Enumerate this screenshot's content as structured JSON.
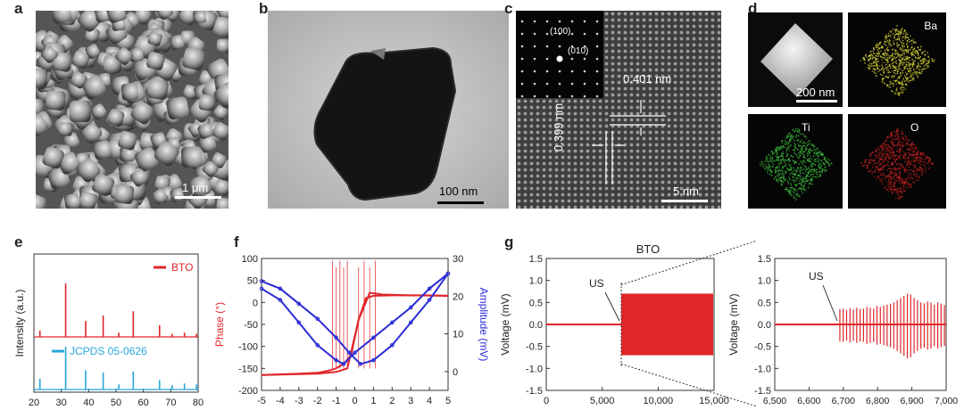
{
  "panels": {
    "a": {
      "label": "a",
      "scale": "1 μm"
    },
    "b": {
      "label": "b",
      "scale": "100 nm"
    },
    "c": {
      "label": "c",
      "scale": "5 nm",
      "miller1": "(100)",
      "miller2": "(010)",
      "dim1": "0.401 nm",
      "dim2": "0.399 nm"
    },
    "d": {
      "label": "d",
      "scale": "200 nm",
      "maps": [
        "Ba",
        "Ti",
        "O"
      ],
      "colors": {
        "Ba": "#d8d43a",
        "Ti": "#3cb83c",
        "O": "#c02020"
      }
    }
  },
  "chart_data": [
    {
      "panel": "e",
      "type": "line",
      "xlabel": "",
      "ylabel": "Intensity (a.u.)",
      "xlim": [
        20,
        80
      ],
      "xticks": [
        20,
        30,
        40,
        50,
        60,
        70,
        80
      ],
      "series": [
        {
          "name": "BTO",
          "color": "#e0262a",
          "peaks": [
            [
              22.2,
              12
            ],
            [
              31.6,
              100
            ],
            [
              38.9,
              30
            ],
            [
              45.3,
              40
            ],
            [
              51.0,
              8
            ],
            [
              56.3,
              48
            ],
            [
              65.9,
              22
            ],
            [
              70.5,
              6
            ],
            [
              75.0,
              8
            ],
            [
              79.4,
              6
            ]
          ]
        },
        {
          "name": "JCPDS 05-0626",
          "color": "#29a6dc",
          "peaks": [
            [
              22.2,
              25
            ],
            [
              31.6,
              100
            ],
            [
              38.9,
              45
            ],
            [
              45.3,
              40
            ],
            [
              51.0,
              12
            ],
            [
              56.3,
              42
            ],
            [
              65.9,
              22
            ],
            [
              70.5,
              10
            ],
            [
              75.0,
              14
            ],
            [
              79.4,
              12
            ]
          ]
        }
      ]
    },
    {
      "panel": "f",
      "type": "line",
      "xlabel": "",
      "ylabel": "Phase (°)",
      "y2label": "Amplitude (mV)",
      "xlim": [
        -5,
        5
      ],
      "ylim": [
        -200,
        100
      ],
      "y2lim": [
        -5,
        30
      ],
      "xticks": [
        -5,
        -4,
        -3,
        -2,
        -1,
        0,
        1,
        2,
        3,
        4,
        5
      ],
      "yticks": [
        -200,
        -150,
        -100,
        -50,
        0,
        50,
        100
      ],
      "y2ticks": [
        0,
        10,
        20,
        30
      ],
      "phase_color": "#e0262a",
      "amp_color": "#2b2bd6",
      "phase_forward": [
        [
          -5,
          -165
        ],
        [
          -3,
          -162
        ],
        [
          -2,
          -160
        ],
        [
          -1.4,
          -155
        ],
        [
          -1.0,
          -150
        ],
        [
          -0.6,
          -140
        ],
        [
          -0.2,
          -120
        ],
        [
          0.2,
          -40
        ],
        [
          0.6,
          10
        ],
        [
          1.0,
          15
        ],
        [
          2,
          16
        ],
        [
          3,
          16
        ],
        [
          4,
          16
        ],
        [
          5,
          15
        ]
      ],
      "phase_reverse": [
        [
          5,
          15
        ],
        [
          3,
          16
        ],
        [
          1.5,
          18
        ],
        [
          0.8,
          22
        ],
        [
          0.2,
          -40
        ],
        [
          -0.4,
          -150
        ],
        [
          -1,
          -158
        ],
        [
          -2,
          -162
        ],
        [
          -3,
          -163
        ],
        [
          -5,
          -165
        ]
      ],
      "amp_forward": [
        [
          -5,
          24
        ],
        [
          -4,
          22
        ],
        [
          -3,
          18
        ],
        [
          -2,
          14
        ],
        [
          -1,
          9
        ],
        [
          -0.3,
          5
        ],
        [
          0.3,
          2
        ],
        [
          1,
          3
        ],
        [
          2,
          7
        ],
        [
          3,
          13
        ],
        [
          4,
          19
        ],
        [
          5,
          26
        ]
      ],
      "amp_reverse": [
        [
          5,
          26
        ],
        [
          4,
          22
        ],
        [
          3,
          17
        ],
        [
          2,
          13
        ],
        [
          1,
          9
        ],
        [
          0,
          5
        ],
        [
          -0.6,
          2
        ],
        [
          -1,
          3
        ],
        [
          -2,
          7
        ],
        [
          -3,
          13
        ],
        [
          -4,
          19
        ],
        [
          -5,
          22
        ]
      ]
    },
    {
      "panel": "g",
      "type": "line",
      "title": "BTO",
      "annotation": "US",
      "xlabel": "",
      "ylabel": "Voltage (mV)",
      "xlim": [
        0,
        15000
      ],
      "ylim": [
        -1.5,
        1.5
      ],
      "xticks": [
        "0",
        "5,000",
        "10,000",
        "15,000"
      ],
      "yticks": [
        -1.5,
        -1.0,
        -0.5,
        0,
        0.5,
        1.0,
        1.5
      ],
      "color": "#e0262a",
      "us_onset": 6700,
      "envelope_amplitude": 0.7
    },
    {
      "panel": "g-inset",
      "type": "line",
      "annotation": "US",
      "xlabel": "",
      "ylabel": "Voltage (mV)",
      "xlim": [
        6500,
        7000
      ],
      "ylim": [
        -1.5,
        1.5
      ],
      "xticks": [
        "6,500",
        "6,600",
        "6,700",
        "6,800",
        "6,900",
        "7,000"
      ],
      "yticks": [
        -1.5,
        -1.0,
        -0.5,
        0,
        0.5,
        1.0,
        1.5
      ],
      "color": "#e0262a",
      "us_onset": 6685,
      "pulse_peaks": [
        0.35,
        0.36,
        0.33,
        0.37,
        0.34,
        0.38,
        0.35,
        0.36,
        0.4,
        0.38,
        0.36,
        0.42,
        0.4,
        0.43,
        0.45,
        0.47,
        0.5,
        0.55,
        0.6,
        0.65,
        0.7,
        0.68,
        0.6,
        0.55,
        0.5,
        0.48,
        0.52,
        0.5,
        0.45,
        0.5,
        0.47,
        0.44
      ]
    }
  ]
}
